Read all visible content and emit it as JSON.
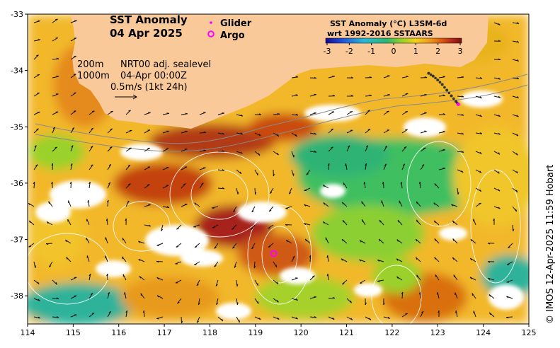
{
  "title": {
    "line1": "SST Anomaly",
    "line2": "04 Apr 2025"
  },
  "legend": {
    "glider_label": "Glider",
    "argo_label": "Argo",
    "glider_color": "#ff00ff",
    "argo_color": "#ff00ff"
  },
  "annotations": {
    "depth1": "200m",
    "depth2": "1000m",
    "sealevel": "NRT00 adj. sealevel",
    "datetime": "04-Apr 00:00Z",
    "vector_scale": "0.5m/s (1kt 24h)"
  },
  "colorbar": {
    "title1": "SST Anomaly (°C) L3SM-6d",
    "title2": "wrt 1992-2016 SSTAARS",
    "ticks": [
      "-3",
      "-2",
      "-1",
      "0",
      "1",
      "2",
      "3"
    ],
    "colors": [
      "#1a0a8c",
      "#1f4fd8",
      "#27b9d6",
      "#2bb673",
      "#8ed12a",
      "#f2d31b",
      "#f29d1b",
      "#d9560f",
      "#a8231a",
      "#7a0f12"
    ]
  },
  "axes": {
    "x_ticks": [
      "114",
      "115",
      "116",
      "117",
      "118",
      "119",
      "120",
      "121",
      "122",
      "123",
      "124",
      "125"
    ],
    "y_ticks": [
      "-33",
      "-34",
      "-35",
      "-36",
      "-37",
      "-38"
    ],
    "x_range": [
      114,
      125
    ],
    "y_range": [
      -38.5,
      -33
    ]
  },
  "credit": "© IMOS 12-Apr-2025 11:59 Hobart",
  "colors": {
    "land": "#f9c99a",
    "missing": "#ffffff"
  },
  "argo_float": {
    "lon": 119.4,
    "lat": -37.25
  },
  "glider_track": [
    {
      "lon": 122.8,
      "lat": -34.05
    },
    {
      "lon": 122.9,
      "lat": -34.1
    },
    {
      "lon": 123.0,
      "lat": -34.17
    },
    {
      "lon": 123.1,
      "lat": -34.25
    },
    {
      "lon": 123.2,
      "lat": -34.35
    },
    {
      "lon": 123.3,
      "lat": -34.45
    },
    {
      "lon": 123.4,
      "lat": -34.55
    },
    {
      "lon": 123.45,
      "lat": -34.6
    }
  ]
}
